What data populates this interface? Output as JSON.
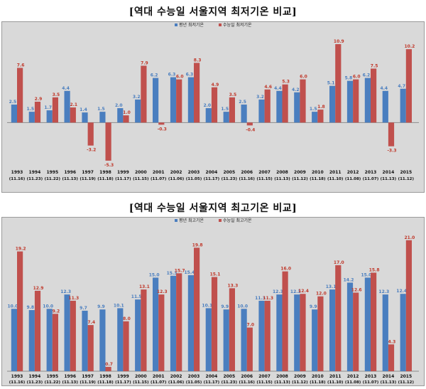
{
  "colors": {
    "blue": "#4a7ebf",
    "red": "#c0504d",
    "blue_text": "#4a7ebf",
    "red_text": "#c0392b"
  },
  "chart_data": [
    {
      "type": "bar",
      "title": "[역대 수능일 서울지역 최저기온 비교]",
      "categories": [
        "1993",
        "1994",
        "1995",
        "1996",
        "1997",
        "1998",
        "1999",
        "2000",
        "2001",
        "2002",
        "2003",
        "2004",
        "2005",
        "2006",
        "2007",
        "2008",
        "2009",
        "2010",
        "2011",
        "2012",
        "2013",
        "2014",
        "2015"
      ],
      "category_dates": [
        "(11.16)",
        "(11.23)",
        "(11.22)",
        "(11.13)",
        "(11.19)",
        "(11.18)",
        "(11.17)",
        "(11.15)",
        "(11.07)",
        "(11.06)",
        "(11.05)",
        "(11.17)",
        "(11.23)",
        "(11.16)",
        "(11.15)",
        "(11.13)",
        "(11.12)",
        "(11.18)",
        "(11.10)",
        "(11.08)",
        "(11.07)",
        "(11.13)",
        "(11.12)"
      ],
      "series": [
        {
          "name": "평년 최저기온",
          "values": [
            2.5,
            1.5,
            1.7,
            4.4,
            1.4,
            1.5,
            2.0,
            3.2,
            6.2,
            6.3,
            6.3,
            2.0,
            1.5,
            2.5,
            3.2,
            4.4,
            4.2,
            1.5,
            5.1,
            5.8,
            6.2,
            4.4,
            4.7
          ]
        },
        {
          "name": "수능일 최저기온",
          "values": [
            7.6,
            2.9,
            3.5,
            2.1,
            -3.2,
            -5.3,
            1.0,
            7.9,
            -0.3,
            6.0,
            8.3,
            4.9,
            3.5,
            -0.4,
            4.6,
            5.3,
            6.0,
            1.8,
            10.9,
            6.0,
            7.5,
            -3.3,
            10.2
          ]
        }
      ],
      "ylim": [
        -6,
        11.5
      ],
      "grid": false,
      "legend_position": "top-right"
    },
    {
      "type": "bar",
      "title": "[역대 수능일 서울지역 최고기온 비교]",
      "categories": [
        "1993",
        "1994",
        "1995",
        "1996",
        "1997",
        "1998",
        "1999",
        "2000",
        "2001",
        "2002",
        "2003",
        "2004",
        "2005",
        "2006",
        "2007",
        "2008",
        "2009",
        "2010",
        "2011",
        "2012",
        "2013",
        "2014",
        "2015"
      ],
      "category_dates": [
        "(11.16)",
        "(11.23)",
        "(11.22)",
        "(11.13)",
        "(11.19)",
        "(11.18)",
        "(11.17)",
        "(11.15)",
        "(11.07)",
        "(11.06)",
        "(11.05)",
        "(11.17)",
        "(11.23)",
        "(11.16)",
        "(11.15)",
        "(11.13)",
        "(11.12)",
        "(11.18)",
        "(11.10)",
        "(11.08)",
        "(11.07)",
        "(11.13)",
        "(11.12)"
      ],
      "series": [
        {
          "name": "평년 최고기온",
          "values": [
            10.0,
            9.8,
            10.0,
            12.3,
            9.7,
            9.9,
            10.1,
            11.5,
            15.0,
            15.3,
            15.4,
            10.1,
            9.9,
            10.0,
            11.3,
            12.3,
            12.3,
            9.9,
            13.1,
            14.2,
            15.0,
            12.3,
            12.4
          ]
        },
        {
          "name": "수능일 최고기온",
          "values": [
            19.2,
            12.9,
            9.2,
            11.3,
            7.4,
            0.7,
            8.0,
            13.1,
            12.3,
            15.7,
            19.8,
            15.1,
            13.3,
            7.0,
            11.3,
            16.0,
            12.4,
            12.0,
            17.0,
            12.6,
            15.8,
            4.3,
            21.0
          ]
        }
      ],
      "ylim": [
        0,
        22
      ],
      "grid": false,
      "legend_position": "top-right"
    }
  ]
}
